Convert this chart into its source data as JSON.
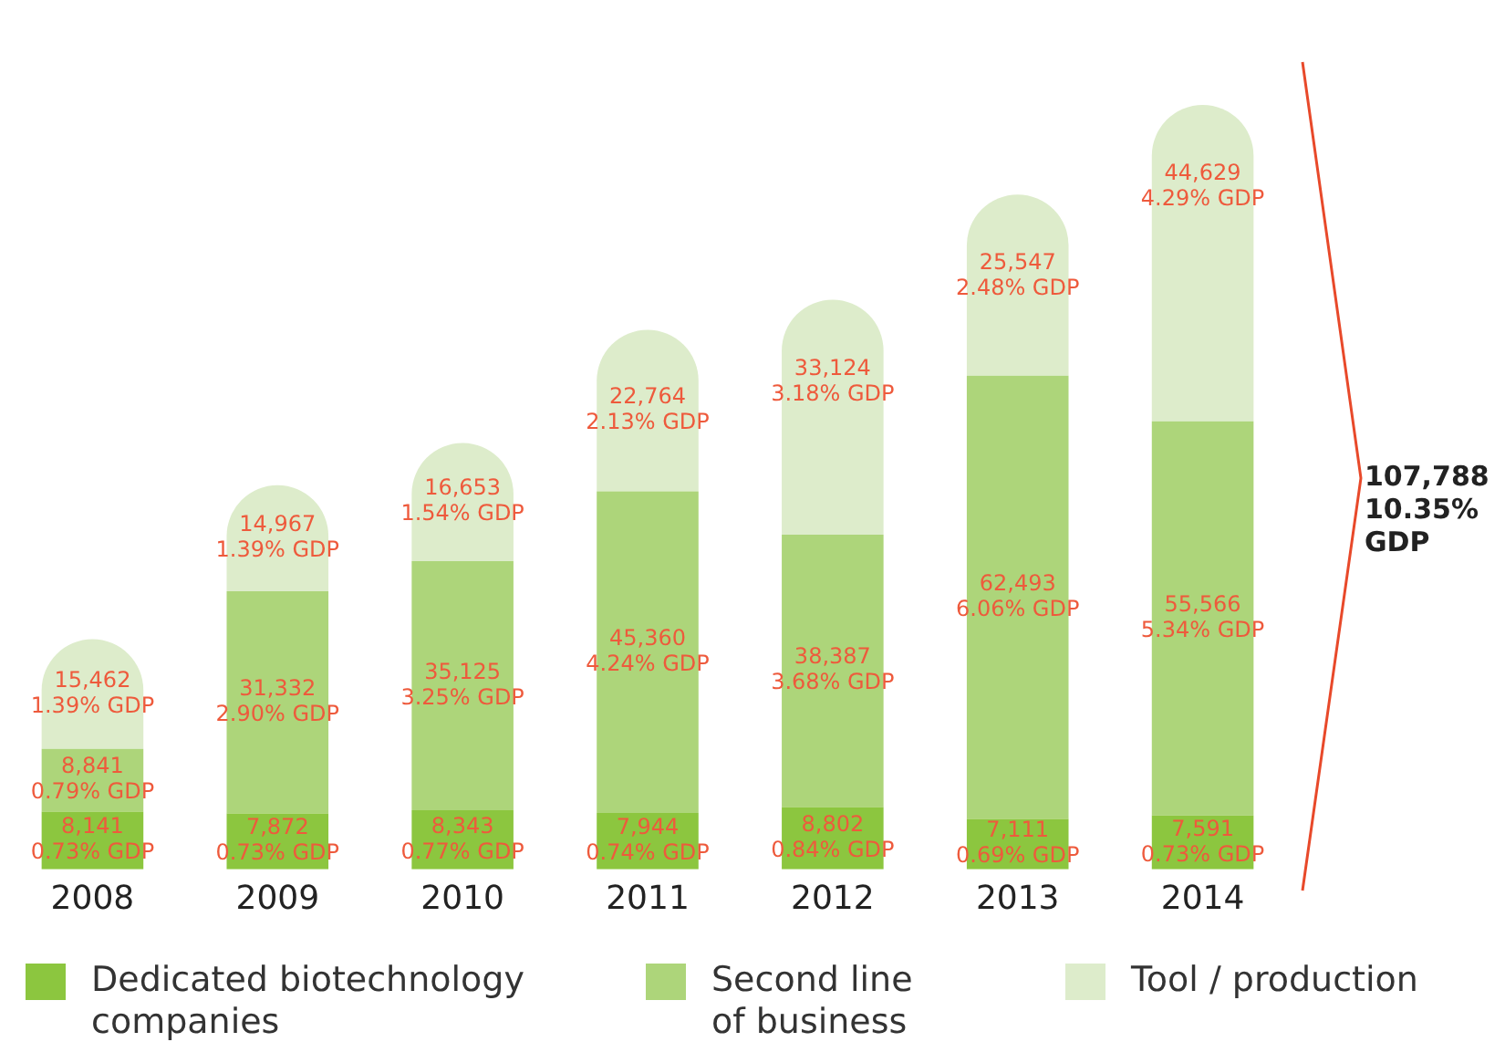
{
  "chart_data": {
    "type": "bar",
    "stacked": true,
    "tick_labels": "x",
    "grid": false,
    "legend": "bottom",
    "categories": [
      "2008",
      "2009",
      "2010",
      "2011",
      "2012",
      "2013",
      "2014"
    ],
    "series": [
      {
        "name": "Dedicated biotechnology companies",
        "color": "#8cc63f",
        "values": [
          8141,
          7872,
          8343,
          7944,
          8802,
          7111,
          7591
        ],
        "value_labels": [
          "8,141\n0.73% GDP",
          "7,872\n0.73% GDP",
          "8,343\n0.77% GDP",
          "7,944\n0.74% GDP",
          "8,802\n0.84% GDP",
          "7,111\n0.69% GDP",
          "7,591\n0.73% GDP"
        ]
      },
      {
        "name": "Second line of business",
        "color": "#add57a",
        "values": [
          8841,
          31332,
          35125,
          45360,
          38387,
          62493,
          55566
        ],
        "value_labels": [
          "8,841\n0.79% GDP",
          "31,332\n2.90% GDP",
          "35,125\n3.25% GDP",
          "45,360\n4.24% GDP",
          "38,387\n3.68% GDP",
          "62,493\n6.06% GDP",
          "55,566\n5.34% GDP"
        ]
      },
      {
        "name": "Tool / production",
        "color": "#ddeccb",
        "values": [
          15462,
          14967,
          16653,
          22764,
          33124,
          25547,
          44629
        ],
        "value_labels": [
          "15,462\n1.39% GDP",
          "14,967\n1.39% GDP",
          "16,653\n1.54% GDP",
          "22,764\n2.13% GDP",
          "33,124\n3.18% GDP",
          "25,547\n2.48% GDP",
          "44,629\n4.29% GDP"
        ]
      }
    ],
    "annotations": [
      "107,788\n10.35%\nGDP"
    ]
  }
}
